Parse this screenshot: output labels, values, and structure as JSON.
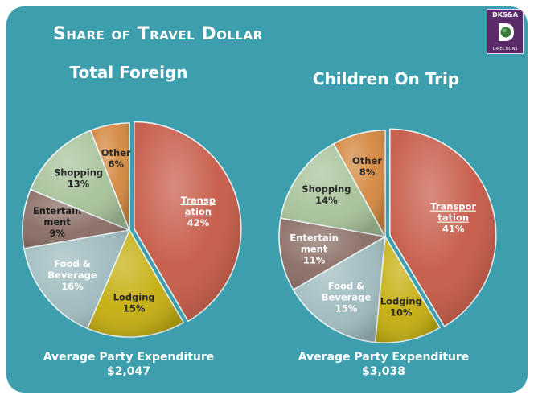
{
  "slide": {
    "title": "Share of Travel Dollar",
    "logo": {
      "top_text": "DKS&A",
      "bottom_text": "DIRECTIONS",
      "mark_icon": "d-letter-globe-icon"
    }
  },
  "colors": {
    "background": "#3d9fae",
    "Transportation": "#c65a47",
    "Lodging": "#c5ae0e",
    "Food & Beverage": "#9fbcbf",
    "Entertainment": "#8a6e65",
    "Shopping": "#a7c39a",
    "Other": "#d4883f"
  },
  "chart_data": [
    {
      "type": "pie",
      "title": "Total Foreign",
      "slices": [
        {
          "category": "Transportation",
          "label_lines": [
            "Transp",
            "ation"
          ],
          "value": 42,
          "value_text": "42%",
          "underline": true,
          "text_color": "#ffffff"
        },
        {
          "category": "Lodging",
          "label_lines": [
            "Lodging"
          ],
          "value": 15,
          "value_text": "15%",
          "text_color": "#2a2a2a"
        },
        {
          "category": "Food & Beverage",
          "label_lines": [
            "Food &",
            "Beverage"
          ],
          "value": 16,
          "value_text": "16%",
          "text_color": "#ffffff"
        },
        {
          "category": "Entertainment",
          "label_lines": [
            "Entertain",
            "ment"
          ],
          "value": 9,
          "value_text": "9%",
          "text_color": "#1e1e1e"
        },
        {
          "category": "Shopping",
          "label_lines": [
            "Shopping"
          ],
          "value": 13,
          "value_text": "13%",
          "text_color": "#2a2a2a"
        },
        {
          "category": "Other",
          "label_lines": [
            "Other"
          ],
          "value": 6,
          "value_text": "6%",
          "text_color": "#2a2a2a"
        }
      ],
      "footer": {
        "label": "Average Party Expenditure",
        "value": "$2,047"
      }
    },
    {
      "type": "pie",
      "title": "Children On Trip",
      "slices": [
        {
          "category": "Transportation",
          "label_lines": [
            "Transpor",
            "tation"
          ],
          "value": 41,
          "value_text": "41%",
          "underline": true,
          "text_color": "#ffffff"
        },
        {
          "category": "Lodging",
          "label_lines": [
            "Lodging"
          ],
          "value": 10,
          "value_text": "10%",
          "text_color": "#2a2a2a"
        },
        {
          "category": "Food & Beverage",
          "label_lines": [
            "Food &",
            "Beverage"
          ],
          "value": 15,
          "value_text": "15%",
          "text_color": "#ffffff"
        },
        {
          "category": "Entertainment",
          "label_lines": [
            "Entertain",
            "ment"
          ],
          "value": 11,
          "value_text": "11%",
          "text_color": "#ffffff"
        },
        {
          "category": "Shopping",
          "label_lines": [
            "Shopping"
          ],
          "value": 14,
          "value_text": "14%",
          "text_color": "#2a2a2a"
        },
        {
          "category": "Other",
          "label_lines": [
            "Other"
          ],
          "value": 8,
          "value_text": "8%",
          "text_color": "#2a2a2a"
        }
      ],
      "footer": {
        "label": "Average Party Expenditure",
        "value": "$3,038"
      }
    }
  ]
}
